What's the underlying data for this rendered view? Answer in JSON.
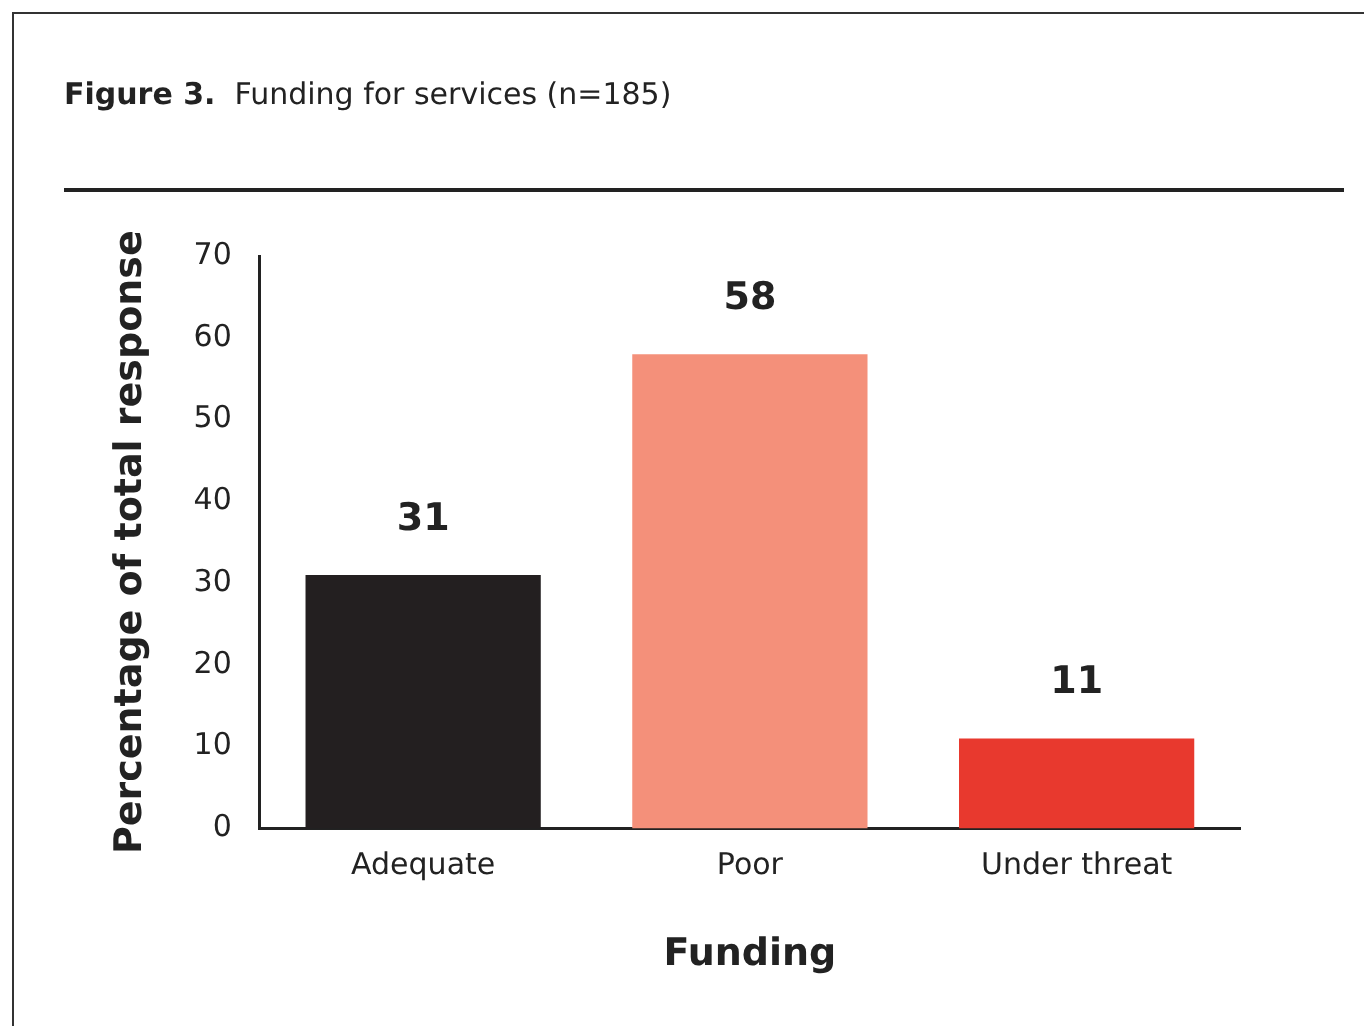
{
  "chart_data": {
    "type": "bar",
    "title": "Figure 3.",
    "subtitle": "Funding for services (n=185)",
    "xlabel": "Funding",
    "ylabel": "Percentage of total response",
    "categories": [
      "Adequate",
      "Poor",
      "Under threat"
    ],
    "values": [
      31,
      58,
      11
    ],
    "colors": [
      "#231f20",
      "#f4907a",
      "#e8392e"
    ],
    "ylim": [
      0,
      70
    ],
    "yticks": [
      0,
      10,
      20,
      30,
      40,
      50,
      60,
      70
    ],
    "grid": false,
    "legend": false,
    "data_labels": true
  }
}
